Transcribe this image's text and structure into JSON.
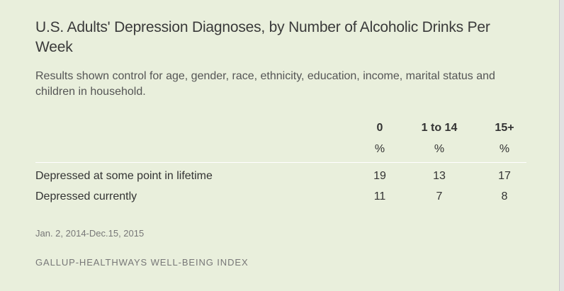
{
  "title": "U.S. Adults' Depression Diagnoses, by Number of Alcoholic Drinks Per Week",
  "subtitle": "Results shown control for age, gender, race, ethnicity, education, income, marital status and children in household.",
  "date_range": "Jan. 2, 2014-Dec.15, 2015",
  "source": "GALLUP-HEALTHWAYS WELL-BEING INDEX",
  "chart_data": {
    "type": "table",
    "title": "U.S. Adults' Depression Diagnoses, by Number of Alcoholic Drinks Per Week",
    "subtitle": "Results shown control for age, gender, race, ethnicity, education, income, marital status and children in household.",
    "columns": [
      "0",
      "1 to 14",
      "15+"
    ],
    "unit_labels": [
      "%",
      "%",
      "%"
    ],
    "rows": [
      {
        "label": "Depressed at some point in lifetime",
        "values": [
          19,
          13,
          17
        ]
      },
      {
        "label": "Depressed currently",
        "values": [
          11,
          7,
          8
        ]
      }
    ]
  }
}
